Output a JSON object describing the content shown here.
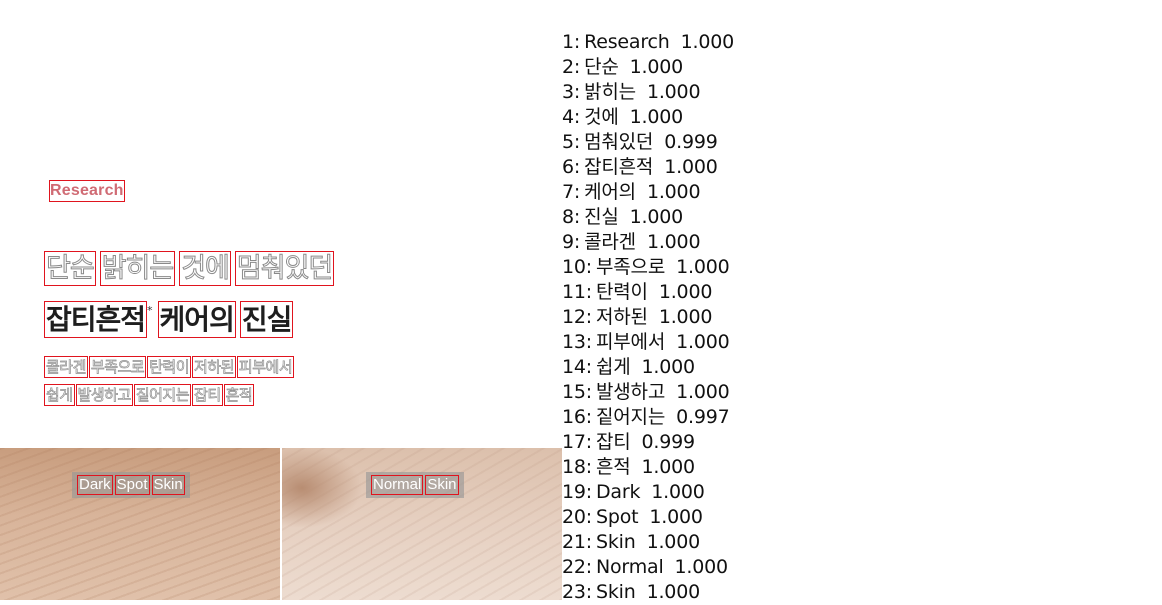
{
  "research": "Research",
  "headline_line1": [
    "단순",
    "밝히는",
    "것에",
    "멈춰있던"
  ],
  "headline_line2": [
    "잡티흔적",
    "케어의",
    "진실"
  ],
  "headline_mark": "*",
  "sub_line1": [
    "콜라겐",
    "부족으로",
    "탄력이",
    "저하된",
    "피부에서"
  ],
  "sub_line2": [
    "쉽게",
    "발생하고",
    "짙어지는",
    "잡티",
    "흔적"
  ],
  "photo_labels": {
    "left": [
      "Dark",
      "Spot",
      "Skin"
    ],
    "right": [
      "Normal",
      "Skin"
    ]
  },
  "detections": [
    {
      "n": "1:",
      "text": "Research",
      "score": "1.000"
    },
    {
      "n": "2:",
      "text": "단순",
      "score": "1.000"
    },
    {
      "n": "3:",
      "text": "밝히는",
      "score": "1.000"
    },
    {
      "n": "4:",
      "text": "것에",
      "score": "1.000"
    },
    {
      "n": "5:",
      "text": "멈춰있던",
      "score": "0.999"
    },
    {
      "n": "6:",
      "text": "잡티흔적",
      "score": "1.000"
    },
    {
      "n": "7:",
      "text": "케어의",
      "score": "1.000"
    },
    {
      "n": "8:",
      "text": "진실",
      "score": "1.000"
    },
    {
      "n": "9:",
      "text": "콜라겐",
      "score": "1.000"
    },
    {
      "n": "10:",
      "text": "부족으로",
      "score": "1.000"
    },
    {
      "n": "11:",
      "text": "탄력이",
      "score": "1.000"
    },
    {
      "n": "12:",
      "text": "저하된",
      "score": "1.000"
    },
    {
      "n": "13:",
      "text": "피부에서",
      "score": "1.000"
    },
    {
      "n": "14:",
      "text": "쉽게",
      "score": "1.000"
    },
    {
      "n": "15:",
      "text": "발생하고",
      "score": "1.000"
    },
    {
      "n": "16:",
      "text": "짙어지는",
      "score": "0.997"
    },
    {
      "n": "17:",
      "text": "잡티",
      "score": "0.999"
    },
    {
      "n": "18:",
      "text": "흔적",
      "score": "1.000"
    },
    {
      "n": "19:",
      "text": "Dark",
      "score": "1.000"
    },
    {
      "n": "20:",
      "text": "Spot",
      "score": "1.000"
    },
    {
      "n": "21:",
      "text": "Skin",
      "score": "1.000"
    },
    {
      "n": "22:",
      "text": "Normal",
      "score": "1.000"
    },
    {
      "n": "23:",
      "text": "Skin",
      "score": "1.000"
    }
  ],
  "colors": {
    "box": "#e0141e",
    "research": "#d06b74",
    "headline_dark": "#1e1e1e"
  }
}
